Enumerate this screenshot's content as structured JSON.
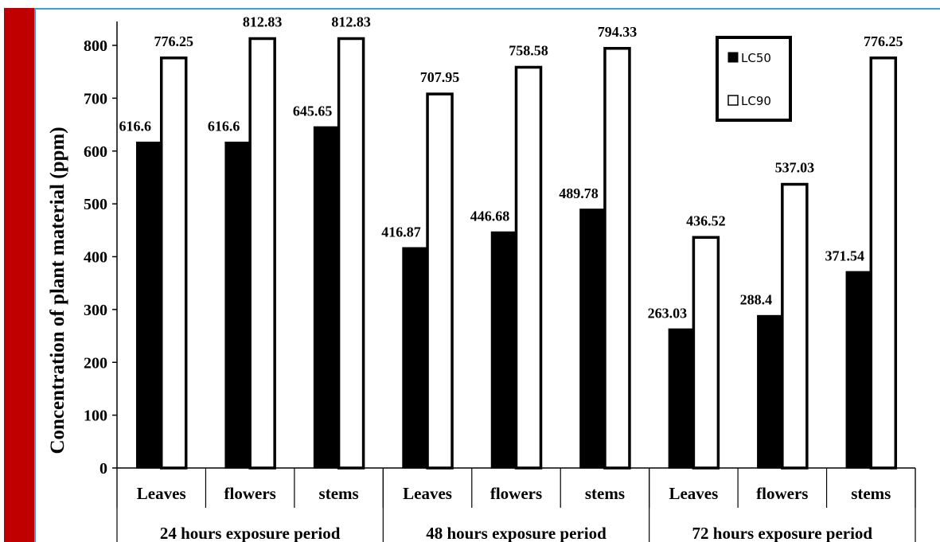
{
  "chart_data": {
    "type": "bar",
    "title": "",
    "xlabel": "",
    "ylabel": "Concentration of plant material (ppm)",
    "ylim": [
      0,
      800
    ],
    "yticks": [
      0,
      100,
      200,
      300,
      400,
      500,
      600,
      700,
      800
    ],
    "categories": [
      "Leaves",
      "flowers",
      "stems",
      "Leaves",
      "flowers",
      "stems",
      "Leaves",
      "flowers",
      "stems"
    ],
    "groups": [
      "24 hours exposure period",
      "48 hours exposure period",
      "72 hours exposure period"
    ],
    "series": [
      {
        "name": "LC50",
        "color": "#000000",
        "values": [
          616.6,
          616.6,
          645.65,
          416.87,
          446.68,
          489.78,
          263.03,
          288.4,
          371.54
        ],
        "labels": [
          "616.6",
          "616.6",
          "645.65",
          "416.87",
          "446.68",
          "489.78",
          "263.03",
          "288.4",
          "371.54"
        ]
      },
      {
        "name": "LC90",
        "color": "#ffffff",
        "values": [
          776.25,
          812.83,
          812.83,
          707.95,
          758.58,
          794.33,
          436.52,
          537.03,
          776.25
        ],
        "labels": [
          "776.25",
          "812.83",
          "812.83",
          "707.95",
          "758.58",
          "794.33",
          "436.52",
          "537.03",
          "776.25"
        ]
      }
    ],
    "legend_position": "top-right",
    "grid": false
  }
}
